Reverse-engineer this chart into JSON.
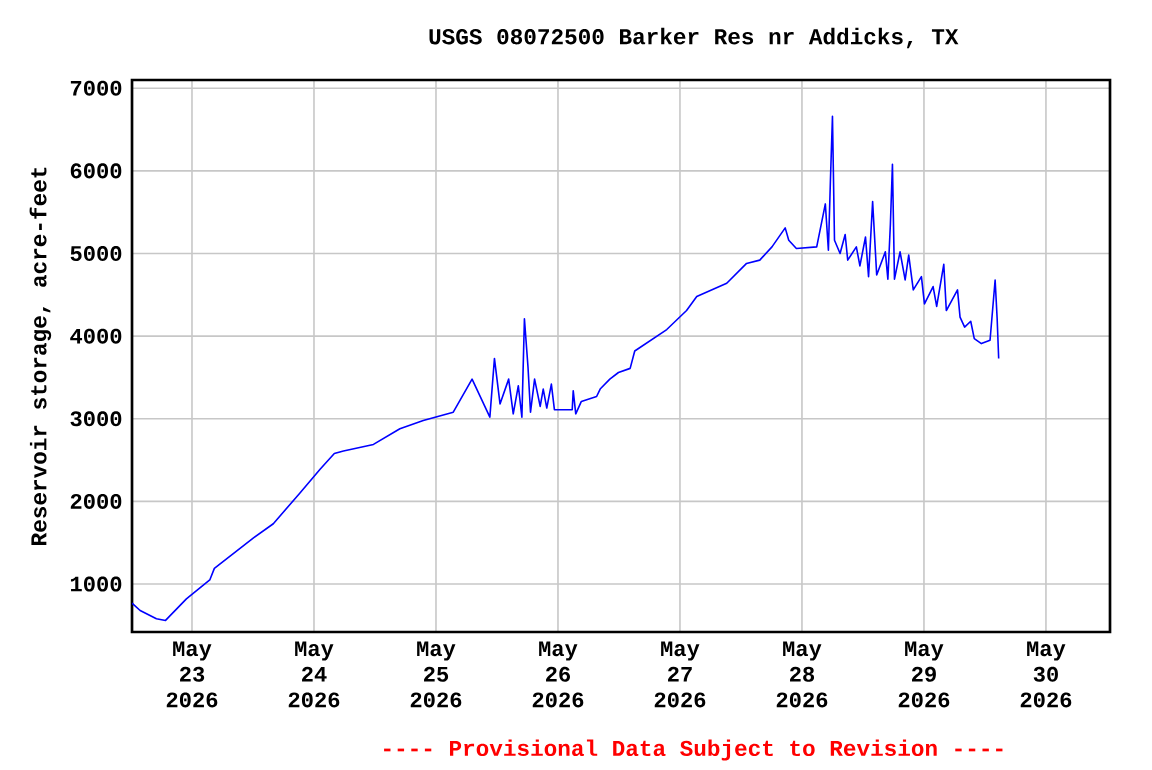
{
  "chart_data": {
    "type": "line",
    "title": "USGS 08072500 Barker Res nr Addicks, TX",
    "ylabel": "Reservoir storage, acre-feet",
    "annotations": [
      "---- Provisional Data Subject to Revision ----"
    ],
    "x": [
      "2026-05-22T12:12",
      "2026-05-22T13:48",
      "2026-05-22T17:00",
      "2026-05-22T18:48",
      "2026-05-22T22:54",
      "2026-05-23T03:30",
      "2026-05-23T04:24",
      "2026-05-23T12:06",
      "2026-05-23T16:00",
      "2026-05-23T21:12",
      "2026-05-24T01:12",
      "2026-05-24T04:00",
      "2026-05-24T05:48",
      "2026-05-24T11:42",
      "2026-05-24T16:54",
      "2026-05-24T21:30",
      "2026-05-25T03:24",
      "2026-05-25T07:06",
      "2026-05-25T10:36",
      "2026-05-25T11:30",
      "2026-05-25T12:36",
      "2026-05-25T14:18",
      "2026-05-25T15:12",
      "2026-05-25T16:12",
      "2026-05-25T16:54",
      "2026-05-25T17:24",
      "2026-05-25T18:06",
      "2026-05-25T18:36",
      "2026-05-25T19:24",
      "2026-05-25T20:30",
      "2026-05-25T21:06",
      "2026-05-25T21:48",
      "2026-05-25T22:42",
      "2026-05-25T23:18",
      "2026-05-26T02:48",
      "2026-05-26T03:00",
      "2026-05-26T03:30",
      "2026-05-26T04:36",
      "2026-05-26T07:36",
      "2026-05-26T08:18",
      "2026-05-26T10:12",
      "2026-05-26T11:54",
      "2026-05-26T14:12",
      "2026-05-26T15:06",
      "2026-05-26T21:24",
      "2026-05-27T01:18",
      "2026-05-27T03:18",
      "2026-05-27T09:12",
      "2026-05-27T13:06",
      "2026-05-27T15:42",
      "2026-05-27T18:06",
      "2026-05-27T20:42",
      "2026-05-27T21:24",
      "2026-05-27T22:54",
      "2026-05-28T02:54",
      "2026-05-28T04:36",
      "2026-05-28T05:12",
      "2026-05-28T05:36",
      "2026-05-28T06:00",
      "2026-05-28T06:24",
      "2026-05-28T07:30",
      "2026-05-28T08:30",
      "2026-05-28T09:00",
      "2026-05-28T10:42",
      "2026-05-28T11:24",
      "2026-05-28T12:30",
      "2026-05-28T13:06",
      "2026-05-28T13:54",
      "2026-05-28T14:42",
      "2026-05-28T16:24",
      "2026-05-28T16:54",
      "2026-05-28T17:24",
      "2026-05-28T17:48",
      "2026-05-28T18:12",
      "2026-05-28T19:18",
      "2026-05-28T20:18",
      "2026-05-28T21:00",
      "2026-05-28T21:54",
      "2026-05-28T23:30",
      "2026-05-29T00:06",
      "2026-05-29T01:48",
      "2026-05-29T02:30",
      "2026-05-29T03:54",
      "2026-05-29T04:24",
      "2026-05-29T06:36",
      "2026-05-29T07:06",
      "2026-05-29T08:00",
      "2026-05-29T09:12",
      "2026-05-29T09:54",
      "2026-05-29T11:18",
      "2026-05-29T13:00",
      "2026-05-29T14:00",
      "2026-05-29T14:24",
      "2026-05-29T14:42"
    ],
    "series": [
      {
        "color": "#0000ff",
        "values": [
          770,
          680,
          580,
          560,
          820,
          1050,
          1190,
          1560,
          1730,
          2100,
          2390,
          2580,
          2610,
          2690,
          2880,
          2980,
          3080,
          3480,
          3020,
          3730,
          3180,
          3480,
          3060,
          3400,
          3020,
          4210,
          3630,
          3080,
          3480,
          3150,
          3360,
          3130,
          3420,
          3110,
          3110,
          3340,
          3060,
          3210,
          3270,
          3360,
          3480,
          3560,
          3610,
          3820,
          4080,
          4310,
          4480,
          4640,
          4880,
          4920,
          5080,
          5310,
          5160,
          5060,
          5080,
          5600,
          5040,
          5890,
          6660,
          5160,
          5000,
          5230,
          4920,
          5080,
          4850,
          5200,
          4720,
          5630,
          4740,
          5020,
          4690,
          5360,
          6080,
          4690,
          5020,
          4680,
          4980,
          4560,
          4720,
          4390,
          4600,
          4360,
          4870,
          4310,
          4560,
          4230,
          4110,
          4180,
          3970,
          3910,
          3950,
          4680,
          4210,
          3730
        ]
      }
    ],
    "xlim": [
      "2026-05-22T12:12",
      "2026-05-30T12:36"
    ],
    "xticks": [
      {
        "value": "2026-05-23",
        "label": "May 23 2026"
      },
      {
        "value": "2026-05-24",
        "label": "May 24 2026"
      },
      {
        "value": "2026-05-25",
        "label": "May 25 2026"
      },
      {
        "value": "2026-05-26",
        "label": "May 26 2026"
      },
      {
        "value": "2026-05-27",
        "label": "May 27 2026"
      },
      {
        "value": "2026-05-28",
        "label": "May 28 2026"
      },
      {
        "value": "2026-05-29",
        "label": "May 29 2026"
      },
      {
        "value": "2026-05-30",
        "label": "May 30 2026"
      }
    ],
    "ylim": [
      420,
      7100
    ],
    "yticks": [
      1000,
      2000,
      3000,
      4000,
      5000,
      6000,
      7000
    ],
    "grid": true
  }
}
